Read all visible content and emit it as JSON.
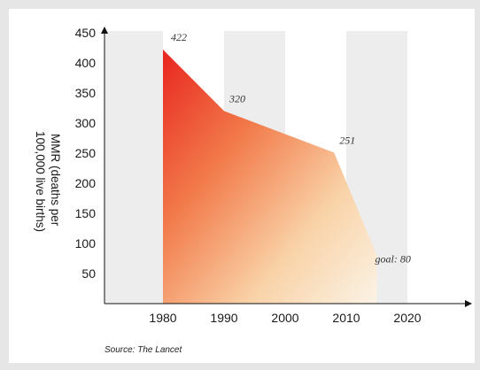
{
  "chart_data": {
    "type": "area",
    "ylabel_lines": [
      "MMR (deaths per",
      "100,000 live births)"
    ],
    "ylim": [
      0,
      450
    ],
    "yticks": [
      50,
      100,
      150,
      200,
      250,
      300,
      350,
      400,
      450
    ],
    "xlim": [
      1960,
      2030
    ],
    "xticks": [
      1980,
      1990,
      2000,
      2010,
      2020
    ],
    "points": [
      {
        "x": 1980,
        "y": 422,
        "label": "422"
      },
      {
        "x": 1990,
        "y": 320,
        "label": "320"
      },
      {
        "x": 2008,
        "y": 251,
        "label": "251"
      },
      {
        "x": 2015,
        "y": 80,
        "label": "goal: 80"
      }
    ],
    "source": "Source: The Lancet",
    "colors": {
      "start": "#e8251f",
      "end": "#fdf6e8",
      "band": "#ededed"
    }
  }
}
